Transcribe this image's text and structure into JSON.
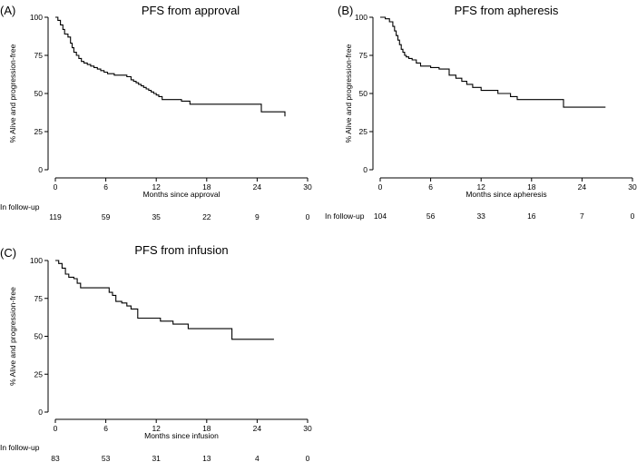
{
  "chart_data": [
    {
      "type": "line",
      "panel_label": "(A)",
      "title": "PFS from approval",
      "xlabel": "Months since approval",
      "ylabel": "% Alive and progression-free",
      "xlim": [
        0,
        30
      ],
      "ylim": [
        0,
        100
      ],
      "x_ticks": [
        0,
        6,
        12,
        18,
        24,
        30
      ],
      "y_ticks": [
        0,
        25,
        50,
        75,
        100
      ],
      "grid": false,
      "series": [
        {
          "name": "PFS from approval",
          "step": true,
          "x": [
            0,
            0.3,
            0.6,
            0.9,
            1.1,
            1.5,
            1.8,
            2.0,
            2.2,
            2.5,
            2.8,
            3.1,
            3.4,
            3.8,
            4.2,
            4.6,
            5.0,
            5.4,
            5.8,
            6.2,
            7.0,
            8.5,
            9.0,
            9.3,
            9.6,
            9.9,
            10.2,
            10.5,
            10.8,
            11.1,
            11.4,
            11.7,
            12.0,
            12.3,
            12.7,
            15.0,
            16.0,
            24.5,
            27.3
          ],
          "y": [
            100,
            98,
            95,
            92,
            89,
            87,
            83,
            80,
            77,
            75,
            73,
            71,
            70,
            69,
            68,
            67,
            66,
            65,
            64,
            63,
            62,
            61,
            59,
            58,
            57,
            56,
            55,
            54,
            53,
            52,
            51,
            50,
            49,
            48,
            46,
            45,
            43,
            38,
            35
          ]
        }
      ],
      "at_risk_label": "In follow-up",
      "at_risk_times": [
        0,
        6,
        12,
        18,
        24,
        30
      ],
      "at_risk_counts": [
        "119",
        "59",
        "35",
        "22",
        "9",
        "0"
      ]
    },
    {
      "type": "line",
      "panel_label": "(B)",
      "title": "PFS from apheresis",
      "xlabel": "Months since apheresis",
      "ylabel": "% Alive and progression-free",
      "xlim": [
        0,
        30
      ],
      "ylim": [
        0,
        100
      ],
      "x_ticks": [
        0,
        6,
        12,
        18,
        24,
        30
      ],
      "y_ticks": [
        0,
        25,
        50,
        75,
        100
      ],
      "grid": false,
      "series": [
        {
          "name": "PFS from apheresis",
          "step": true,
          "x": [
            0,
            0.6,
            1.1,
            1.5,
            1.7,
            1.9,
            2.1,
            2.3,
            2.5,
            2.7,
            2.9,
            3.1,
            3.4,
            3.8,
            4.3,
            4.8,
            6.0,
            7.0,
            8.2,
            9.0,
            9.7,
            10.3,
            11.0,
            12.0,
            14.0,
            15.5,
            16.3,
            21.8,
            26.8
          ],
          "y": [
            100,
            99,
            97,
            94,
            91,
            88,
            85,
            82,
            79,
            77,
            75,
            74,
            73,
            72,
            70,
            68,
            67,
            66,
            62,
            60,
            58,
            56,
            54,
            52,
            50,
            48,
            46,
            41,
            41
          ]
        }
      ],
      "at_risk_label": "In follow-up",
      "at_risk_times": [
        0,
        6,
        12,
        18,
        24,
        30
      ],
      "at_risk_counts": [
        "104",
        "56",
        "33",
        "16",
        "7",
        "0"
      ]
    },
    {
      "type": "line",
      "panel_label": "(C)",
      "title": "PFS from infusion",
      "xlabel": "Months since infusion",
      "ylabel": "% Alive and progression-free",
      "xlim": [
        0,
        30
      ],
      "ylim": [
        0,
        100
      ],
      "x_ticks": [
        0,
        6,
        12,
        18,
        24,
        30
      ],
      "y_ticks": [
        0,
        25,
        50,
        75,
        100
      ],
      "grid": false,
      "series": [
        {
          "name": "PFS from infusion",
          "step": true,
          "x": [
            0,
            0.4,
            0.8,
            1.2,
            1.6,
            2.2,
            2.6,
            3.0,
            6.4,
            6.8,
            7.2,
            7.9,
            8.5,
            9.0,
            9.8,
            12.5,
            14.0,
            15.8,
            21.0,
            26.0
          ],
          "y": [
            100,
            98,
            95,
            91,
            89,
            88,
            85,
            82,
            79,
            77,
            73,
            72,
            70,
            68,
            62,
            60,
            58,
            55,
            48,
            48
          ]
        }
      ],
      "at_risk_label": "In follow-up",
      "at_risk_times": [
        0,
        6,
        12,
        18,
        24,
        30
      ],
      "at_risk_counts": [
        "83",
        "53",
        "31",
        "13",
        "4",
        "0"
      ]
    }
  ]
}
